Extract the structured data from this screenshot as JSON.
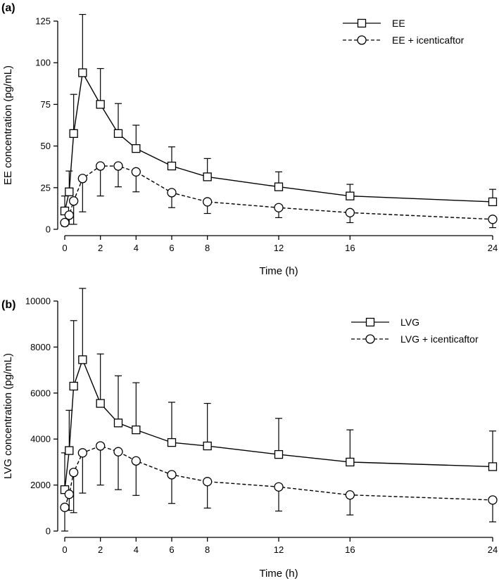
{
  "chart_data": [
    {
      "type": "line",
      "panel_label": "(a)",
      "title": "",
      "xlabel": "Time (h)",
      "ylabel": "EE concentration (pg/mL)",
      "xlim": [
        0,
        24
      ],
      "ylim": [
        0,
        125
      ],
      "xticks": [
        0,
        2,
        4,
        6,
        8,
        12,
        16,
        24
      ],
      "yticks": [
        0,
        25,
        50,
        75,
        100,
        125
      ],
      "x": [
        0,
        0.25,
        0.5,
        1,
        2,
        3,
        4,
        6,
        8,
        12,
        16,
        24
      ],
      "legend_position": "top-right",
      "series": [
        {
          "name": "EE",
          "marker": "square",
          "line": "solid",
          "values": [
            11,
            22.5,
            57.5,
            94,
            75,
            57.5,
            48.5,
            38,
            31.5,
            25.5,
            20,
            16.5
          ],
          "error_upper": [
            20,
            35,
            81,
            129,
            96.5,
            75.5,
            62.5,
            49.5,
            42.5,
            34.5,
            27,
            24
          ]
        },
        {
          "name": "EE + icenticaftor",
          "marker": "circle",
          "line": "dashed",
          "values": [
            4,
            8.5,
            17,
            30.5,
            38,
            38,
            34.5,
            22,
            16.5,
            13,
            10,
            6
          ],
          "error_lower": [
            2,
            3,
            3,
            10.5,
            20,
            25.5,
            22.5,
            13,
            9.5,
            7,
            4,
            1
          ]
        }
      ]
    },
    {
      "type": "line",
      "panel_label": "(b)",
      "title": "",
      "xlabel": "Time (h)",
      "ylabel": "LVG concentration (pg/mL)",
      "xlim": [
        0,
        24
      ],
      "ylim": [
        0,
        10000
      ],
      "xticks": [
        0,
        2,
        4,
        6,
        8,
        12,
        16,
        24
      ],
      "yticks": [
        0,
        2000,
        4000,
        6000,
        8000,
        10000
      ],
      "x": [
        0,
        0.25,
        0.5,
        1,
        2,
        3,
        4,
        6,
        8,
        12,
        16,
        24
      ],
      "legend_position": "top-right",
      "series": [
        {
          "name": "LVG",
          "marker": "square",
          "line": "solid",
          "values": [
            1800,
            3500,
            6300,
            7450,
            5550,
            4700,
            4400,
            3850,
            3700,
            3330,
            3000,
            2800
          ],
          "error_upper": [
            3400,
            5250,
            9150,
            10550,
            7700,
            6750,
            6450,
            5600,
            5550,
            4900,
            4400,
            4350
          ]
        },
        {
          "name": "LVG + icenticaftor",
          "marker": "circle",
          "line": "dashed",
          "values": [
            1030,
            1600,
            2550,
            3400,
            3700,
            3450,
            3050,
            2450,
            2150,
            1920,
            1570,
            1350
          ],
          "error_lower": [
            0,
            900,
            800,
            1650,
            2000,
            1800,
            1550,
            1200,
            1000,
            870,
            700,
            400
          ]
        }
      ]
    }
  ]
}
